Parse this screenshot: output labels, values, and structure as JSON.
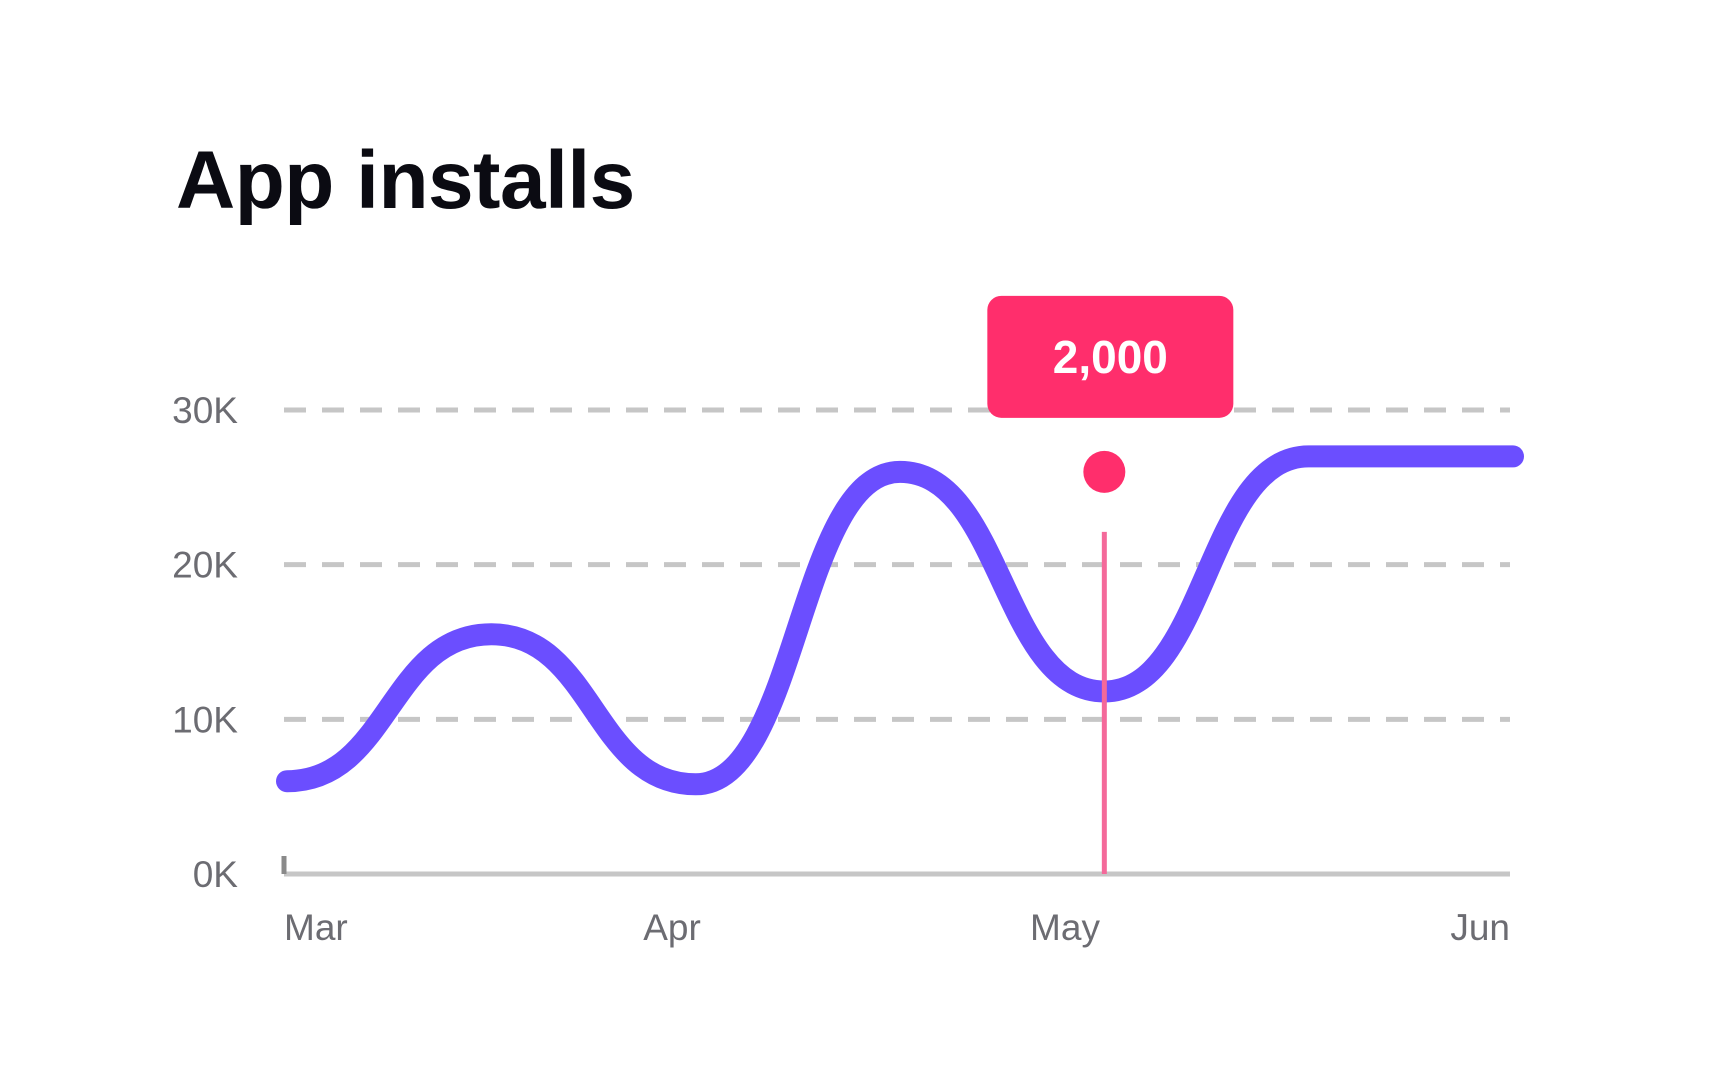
{
  "title": "App installs",
  "colors": {
    "line": "#6b4eff",
    "highlight": "#ff2e6c",
    "highlight_line": "#f4699a",
    "grid": "#c6c6c6",
    "axis": "#c6c6c6",
    "tick_text": "#6c6c72",
    "title": "#0b0b12"
  },
  "chart_data": {
    "type": "line",
    "title": "App installs",
    "xlabel": "",
    "ylabel": "",
    "x_ticks": [
      "Mar",
      "Apr",
      "May",
      "Jun"
    ],
    "y_ticks": [
      "0K",
      "10K",
      "20K",
      "30K"
    ],
    "ylim": [
      0,
      30000
    ],
    "grid": true,
    "legend": "none",
    "series": [
      {
        "x": [
          "Mar 1",
          "Mar 15",
          "Apr 1",
          "Apr 15",
          "May 1",
          "May 15",
          "Jun 1"
        ],
        "values": [
          6000,
          15500,
          5800,
          26000,
          11800,
          27000,
          27000
        ]
      }
    ],
    "highlight": {
      "x": "May 1",
      "y": 26000,
      "label": "2,000"
    }
  }
}
